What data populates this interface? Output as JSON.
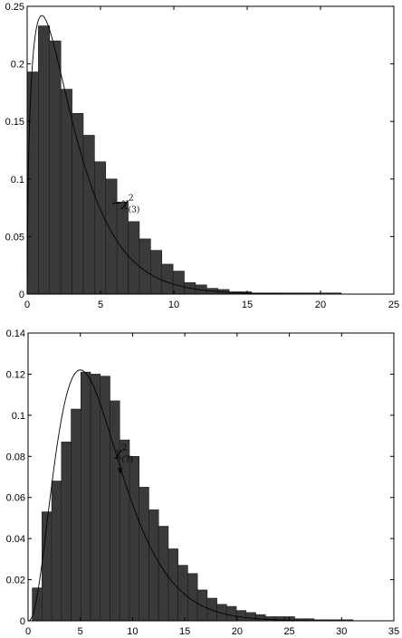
{
  "chart_data": [
    {
      "type": "bar",
      "series_type": "histogram-with-density",
      "title": "",
      "xlabel": "",
      "ylabel": "",
      "xlim": [
        0,
        25
      ],
      "ylim": [
        0,
        0.25
      ],
      "xticks": [
        0,
        5,
        10,
        15,
        20,
        25
      ],
      "yticks": [
        0,
        0.05,
        0.1,
        0.15,
        0.2,
        0.25
      ],
      "xtick_labels": [
        "0",
        "5",
        "10",
        "15",
        "20",
        "25"
      ],
      "ytick_labels": [
        "0",
        "0.05",
        "0.1",
        "0.15",
        "0.2",
        "0.25"
      ],
      "bin_edges": [
        0,
        0.765,
        1.53,
        2.295,
        3.06,
        3.825,
        4.59,
        5.355,
        6.12,
        6.885,
        7.65,
        8.415,
        9.18,
        9.945,
        10.71,
        11.475,
        12.24,
        13.005,
        13.77,
        14.535,
        15.3,
        16.065,
        16.83,
        17.595,
        18.36,
        19.125,
        19.89,
        20.655,
        21.42
      ],
      "values": [
        0.193,
        0.233,
        0.22,
        0.178,
        0.157,
        0.138,
        0.115,
        0.1,
        0.08,
        0.063,
        0.048,
        0.038,
        0.026,
        0.02,
        0.01,
        0.008,
        0.005,
        0.004,
        0.002,
        0.002,
        0.001,
        0.001,
        0.001,
        0.001,
        0.001,
        0.001,
        0.001,
        0.001
      ],
      "curve": {
        "distribution": "chi-square",
        "df": 3,
        "y_scale": 1.0
      },
      "annotation": {
        "arrow": "←",
        "symbol": "χ",
        "superscript": "2",
        "subscript": "(3)",
        "x": 5.8,
        "y": 0.076
      }
    },
    {
      "type": "bar",
      "series_type": "histogram-with-density",
      "title": "",
      "xlabel": "",
      "ylabel": "",
      "xlim": [
        0,
        35
      ],
      "ylim": [
        0,
        0.14
      ],
      "xticks": [
        0,
        5,
        10,
        15,
        20,
        25,
        30,
        35
      ],
      "yticks": [
        0,
        0.02,
        0.04,
        0.06,
        0.08,
        0.1,
        0.12,
        0.14
      ],
      "xtick_labels": [
        "0",
        "5",
        "10",
        "15",
        "20",
        "25",
        "30",
        "35"
      ],
      "ytick_labels": [
        "0",
        "0.02",
        "0.04",
        "0.06",
        "0.08",
        "0.1",
        "0.12",
        "0.14"
      ],
      "bin_edges": [
        0.4,
        1.33,
        2.26,
        3.19,
        4.12,
        5.05,
        5.98,
        6.91,
        7.84,
        8.77,
        9.7,
        10.63,
        11.56,
        12.49,
        13.42,
        14.35,
        15.28,
        16.21,
        17.14,
        18.07,
        19.0,
        19.93,
        20.86,
        21.79,
        22.72,
        23.65,
        24.58,
        25.51,
        26.44,
        27.37,
        28.3,
        29.23,
        30.16,
        31.09
      ],
      "values": [
        0.016,
        0.053,
        0.068,
        0.087,
        0.103,
        0.121,
        0.12,
        0.119,
        0.107,
        0.088,
        0.08,
        0.065,
        0.054,
        0.046,
        0.035,
        0.027,
        0.023,
        0.015,
        0.011,
        0.008,
        0.007,
        0.005,
        0.004,
        0.003,
        0.002,
        0.002,
        0.002,
        0.001,
        0.001,
        0.0005,
        0.0005,
        0.0005,
        0.0005
      ],
      "curve": {
        "distribution": "chi-square",
        "df": 7,
        "y_scale": 1.0
      },
      "annotation": {
        "arrow": "↙",
        "symbol": "χ",
        "superscript": "2",
        "subscript": "(7)",
        "x": 8.3,
        "y": 0.08,
        "arrow_tip": [
          8.8,
          0.072
        ]
      }
    }
  ]
}
